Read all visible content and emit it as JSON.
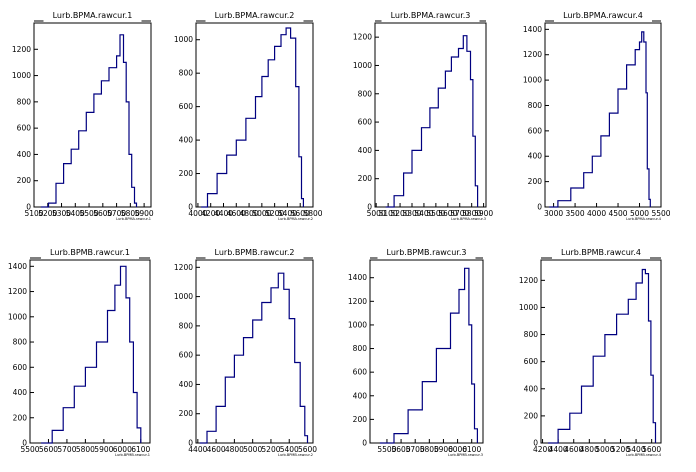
{
  "chart_data": [
    {
      "type": "histogram",
      "title": "Lurb.BPMA.rawcur.1",
      "xlabel": "Lurb.BPMA.rawcur.1",
      "xlim": [
        5100,
        5950
      ],
      "ylim": [
        0,
        1400
      ],
      "xtick_labels": [
        "5100",
        "5200",
        "5300",
        "5400",
        "5500",
        "5600",
        "5700",
        "5800",
        "5900"
      ],
      "xtick_values": [
        5100,
        5200,
        5300,
        5400,
        5500,
        5600,
        5700,
        5800,
        5900
      ],
      "ytick_labels": [
        "0",
        "200",
        "400",
        "600",
        "800",
        "1000",
        "1200"
      ],
      "ytick_values": [
        0,
        200,
        400,
        600,
        800,
        1000,
        1200
      ],
      "grid": false,
      "bins": [
        [
          5150,
          0
        ],
        [
          5205,
          30
        ],
        [
          5260,
          180
        ],
        [
          5315,
          330
        ],
        [
          5370,
          440
        ],
        [
          5425,
          580
        ],
        [
          5480,
          720
        ],
        [
          5535,
          860
        ],
        [
          5590,
          960
        ],
        [
          5645,
          1060
        ],
        [
          5700,
          1150
        ],
        [
          5725,
          1310
        ],
        [
          5750,
          1100
        ],
        [
          5770,
          800
        ],
        [
          5790,
          400
        ],
        [
          5810,
          150
        ],
        [
          5830,
          30
        ],
        [
          5845,
          0
        ]
      ]
    },
    {
      "type": "histogram",
      "title": "Lurb.BPMA.rawcur.2",
      "xlabel": "Lurb.BPMA.rawcur.2",
      "xlim": [
        3970,
        5800
      ],
      "ylim": [
        0,
        1100
      ],
      "xtick_labels": [
        "4000",
        "4200",
        "4400",
        "4600",
        "4800",
        "5000",
        "5200",
        "5400",
        "5600",
        "5800"
      ],
      "xtick_values": [
        4000,
        4200,
        4400,
        4600,
        4800,
        5000,
        5200,
        5400,
        5600,
        5800
      ],
      "ytick_labels": [
        "0",
        "200",
        "400",
        "600",
        "800",
        "1000"
      ],
      "ytick_values": [
        0,
        200,
        400,
        600,
        800,
        1000
      ],
      "grid": false,
      "bins": [
        [
          4050,
          0
        ],
        [
          4150,
          80
        ],
        [
          4300,
          200
        ],
        [
          4450,
          310
        ],
        [
          4600,
          400
        ],
        [
          4750,
          530
        ],
        [
          4900,
          660
        ],
        [
          5000,
          780
        ],
        [
          5100,
          880
        ],
        [
          5200,
          960
        ],
        [
          5300,
          1030
        ],
        [
          5380,
          1070
        ],
        [
          5450,
          1010
        ],
        [
          5530,
          720
        ],
        [
          5580,
          300
        ],
        [
          5620,
          50
        ],
        [
          5650,
          0
        ]
      ]
    },
    {
      "type": "histogram",
      "title": "Lurb.BPMA.rawcur.3",
      "xlabel": "Lurb.BPMA.rawcur.3",
      "xlim": [
        4990,
        5920
      ],
      "ylim": [
        0,
        1300
      ],
      "xtick_labels": [
        "5000",
        "5100",
        "5200",
        "5300",
        "5400",
        "5500",
        "5600",
        "5700",
        "5800",
        "5900"
      ],
      "xtick_values": [
        5000,
        5100,
        5200,
        5300,
        5400,
        5500,
        5600,
        5700,
        5800,
        5900
      ],
      "ytick_labels": [
        "0",
        "200",
        "400",
        "600",
        "800",
        "1000",
        "1200"
      ],
      "ytick_values": [
        0,
        200,
        400,
        600,
        800,
        1000,
        1200
      ],
      "grid": false,
      "bins": [
        [
          5080,
          0
        ],
        [
          5150,
          80
        ],
        [
          5230,
          240
        ],
        [
          5300,
          400
        ],
        [
          5380,
          560
        ],
        [
          5450,
          700
        ],
        [
          5520,
          840
        ],
        [
          5580,
          960
        ],
        [
          5630,
          1060
        ],
        [
          5690,
          1120
        ],
        [
          5730,
          1210
        ],
        [
          5760,
          1100
        ],
        [
          5790,
          900
        ],
        [
          5810,
          500
        ],
        [
          5830,
          150
        ],
        [
          5850,
          0
        ]
      ]
    },
    {
      "type": "histogram",
      "title": "Lurb.BPMA.rawcur.4",
      "xlabel": "Lurb.BPMA.rawcur.4",
      "xlim": [
        2800,
        5500
      ],
      "ylim": [
        0,
        1450
      ],
      "xtick_labels": [
        "3000",
        "3500",
        "4000",
        "4500",
        "5000",
        "5500"
      ],
      "xtick_values": [
        3000,
        3500,
        4000,
        4500,
        5000,
        5500
      ],
      "ytick_labels": [
        "0",
        "200",
        "400",
        "600",
        "800",
        "1000",
        "1200",
        "1400"
      ],
      "ytick_values": [
        0,
        200,
        400,
        600,
        800,
        1000,
        1200,
        1400
      ],
      "grid": false,
      "bins": [
        [
          2900,
          0
        ],
        [
          3100,
          50
        ],
        [
          3400,
          150
        ],
        [
          3700,
          270
        ],
        [
          3900,
          400
        ],
        [
          4100,
          560
        ],
        [
          4300,
          740
        ],
        [
          4500,
          930
        ],
        [
          4700,
          1120
        ],
        [
          4900,
          1240
        ],
        [
          5000,
          1300
        ],
        [
          5050,
          1380
        ],
        [
          5100,
          1300
        ],
        [
          5150,
          900
        ],
        [
          5180,
          300
        ],
        [
          5220,
          60
        ],
        [
          5250,
          0
        ]
      ]
    },
    {
      "type": "histogram",
      "title": "Lurb.BPMB.rawcur.1",
      "xlabel": "Lurb.BPMB.rawcur.1",
      "xlim": [
        5500,
        6150
      ],
      "ylim": [
        0,
        1450
      ],
      "xtick_labels": [
        "5500",
        "5600",
        "5700",
        "5800",
        "5900",
        "6000",
        "6100"
      ],
      "xtick_values": [
        5500,
        5600,
        5700,
        5800,
        5900,
        6000,
        6100
      ],
      "ytick_labels": [
        "0",
        "200",
        "400",
        "600",
        "800",
        "1000",
        "1200",
        "1400"
      ],
      "ytick_values": [
        0,
        200,
        400,
        600,
        800,
        1000,
        1200,
        1400
      ],
      "grid": false,
      "bins": [
        [
          5560,
          0
        ],
        [
          5620,
          100
        ],
        [
          5680,
          280
        ],
        [
          5740,
          450
        ],
        [
          5800,
          600
        ],
        [
          5860,
          800
        ],
        [
          5920,
          1050
        ],
        [
          5960,
          1250
        ],
        [
          5990,
          1400
        ],
        [
          6020,
          1150
        ],
        [
          6040,
          800
        ],
        [
          6060,
          400
        ],
        [
          6080,
          120
        ],
        [
          6100,
          0
        ]
      ]
    },
    {
      "type": "histogram",
      "title": "Lurb.BPMB.rawcur.2",
      "xlabel": "Lurb.BPMB.rawcur.2",
      "xlim": [
        4380,
        5660
      ],
      "ylim": [
        0,
        1250
      ],
      "xtick_labels": [
        "4400",
        "4600",
        "4800",
        "5000",
        "5200",
        "5400",
        "5600"
      ],
      "xtick_values": [
        4400,
        4600,
        4800,
        5000,
        5200,
        5400,
        5600
      ],
      "ytick_labels": [
        "0",
        "200",
        "400",
        "600",
        "800",
        "1000",
        "1200"
      ],
      "ytick_values": [
        0,
        200,
        400,
        600,
        800,
        1000,
        1200
      ],
      "grid": false,
      "bins": [
        [
          4420,
          0
        ],
        [
          4500,
          80
        ],
        [
          4600,
          250
        ],
        [
          4700,
          450
        ],
        [
          4800,
          600
        ],
        [
          4900,
          720
        ],
        [
          5000,
          840
        ],
        [
          5100,
          960
        ],
        [
          5200,
          1060
        ],
        [
          5280,
          1160
        ],
        [
          5340,
          1050
        ],
        [
          5400,
          850
        ],
        [
          5460,
          550
        ],
        [
          5520,
          250
        ],
        [
          5570,
          50
        ],
        [
          5600,
          0
        ]
      ]
    },
    {
      "type": "histogram",
      "title": "Lurb.BPMB.rawcur.3",
      "xlabel": "Lurb.BPMB.rawcur.3",
      "xlim": [
        5380,
        6180
      ],
      "ylim": [
        0,
        1550
      ],
      "xtick_labels": [
        "5500",
        "5600",
        "5700",
        "5800",
        "5900",
        "6000",
        "6100"
      ],
      "xtick_values": [
        5500,
        5600,
        5700,
        5800,
        5900,
        6000,
        6100
      ],
      "ytick_labels": [
        "0",
        "200",
        "400",
        "600",
        "800",
        "1000",
        "1200",
        "1400"
      ],
      "ytick_values": [
        0,
        200,
        400,
        600,
        800,
        1000,
        1200,
        1400
      ],
      "grid": false,
      "bins": [
        [
          5450,
          0
        ],
        [
          5550,
          80
        ],
        [
          5650,
          280
        ],
        [
          5750,
          520
        ],
        [
          5850,
          800
        ],
        [
          5950,
          1100
        ],
        [
          6010,
          1300
        ],
        [
          6050,
          1480
        ],
        [
          6080,
          1000
        ],
        [
          6100,
          500
        ],
        [
          6120,
          120
        ],
        [
          6140,
          0
        ]
      ]
    },
    {
      "type": "histogram",
      "title": "Lurb.BPMB.rawcur.4",
      "xlabel": "Lurb.BPMB.rawcur.4",
      "xlim": [
        4180,
        5720
      ],
      "ylim": [
        0,
        1350
      ],
      "xtick_labels": [
        "4200",
        "4400",
        "4600",
        "4800",
        "5000",
        "5200",
        "5400",
        "5600"
      ],
      "xtick_values": [
        4200,
        4400,
        4600,
        4800,
        5000,
        5200,
        5400,
        5600
      ],
      "ytick_labels": [
        "0",
        "200",
        "400",
        "600",
        "800",
        "1000",
        "1200"
      ],
      "ytick_values": [
        0,
        200,
        400,
        600,
        800,
        1000,
        1200
      ],
      "grid": false,
      "bins": [
        [
          4270,
          0
        ],
        [
          4400,
          100
        ],
        [
          4550,
          220
        ],
        [
          4700,
          420
        ],
        [
          4850,
          640
        ],
        [
          5000,
          800
        ],
        [
          5150,
          950
        ],
        [
          5300,
          1060
        ],
        [
          5400,
          1180
        ],
        [
          5480,
          1280
        ],
        [
          5520,
          1250
        ],
        [
          5560,
          900
        ],
        [
          5590,
          500
        ],
        [
          5620,
          150
        ],
        [
          5650,
          0
        ]
      ]
    }
  ],
  "style": {
    "line_color": "#000080",
    "frame_color": "#000000",
    "background": "#ffffff"
  }
}
